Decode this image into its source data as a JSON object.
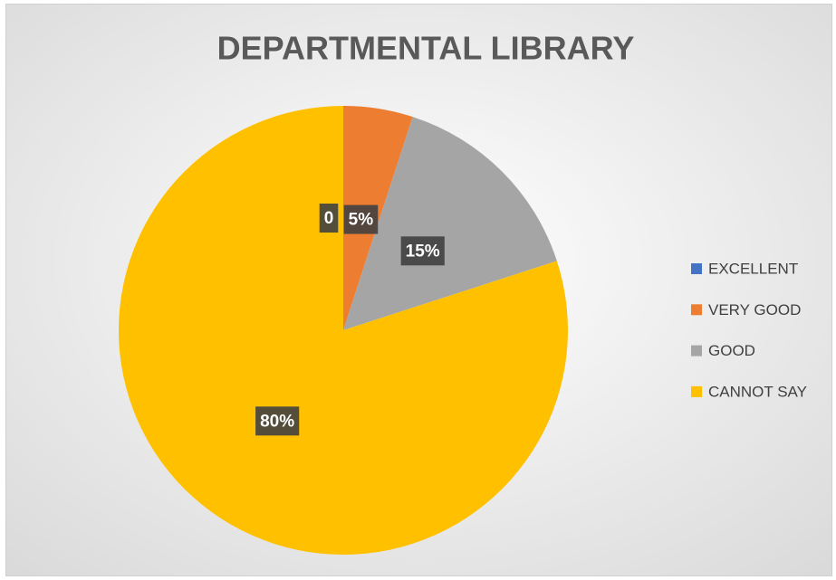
{
  "chart_data": {
    "type": "pie",
    "title": "DEPARTMENTAL LIBRARY",
    "categories": [
      "EXCELLENT",
      "VERY GOOD",
      "GOOD",
      "CANNOT SAY"
    ],
    "values": [
      0,
      5,
      15,
      80
    ],
    "value_labels": [
      "0",
      "5%",
      "15%",
      "80%"
    ],
    "colors": [
      "#4472c4",
      "#ed7d31",
      "#a5a5a5",
      "#ffc000"
    ],
    "legend": "right"
  }
}
